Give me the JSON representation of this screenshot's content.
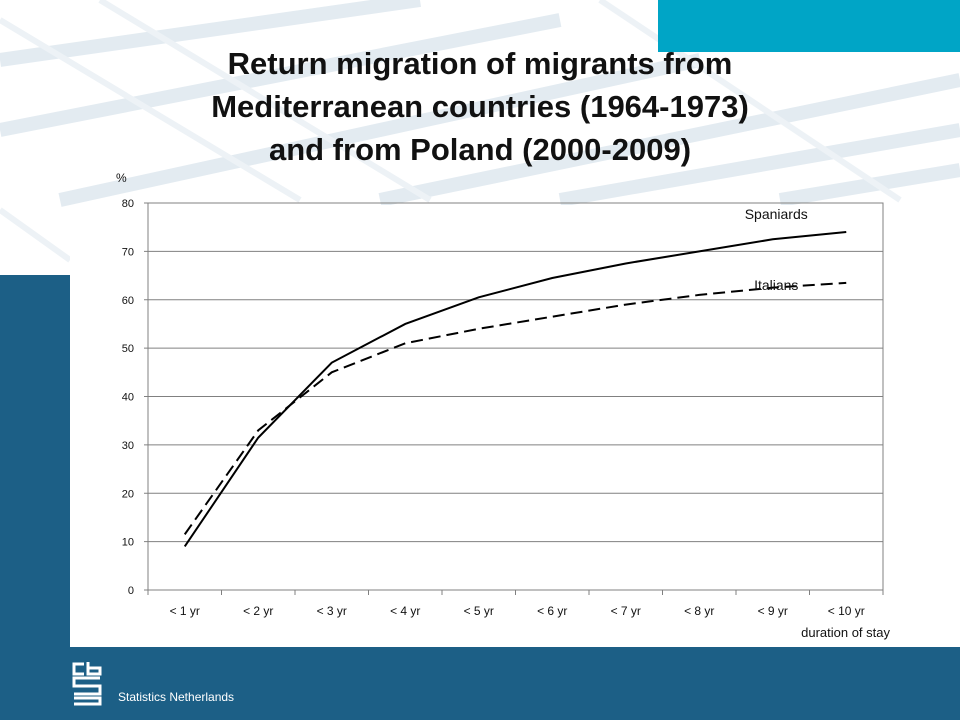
{
  "slide": {
    "title_lines": [
      "Return migration of migrants from",
      "Mediterranean countries (1964-1973)",
      "and from Poland (2000-2009)"
    ],
    "footer": "Statistics Netherlands",
    "colors": {
      "band": "#1c5f86",
      "accent": "#00a5c6"
    },
    "logo_icon": "cbs-logo-icon"
  },
  "chart_data": {
    "type": "line",
    "title": "",
    "ylabel": "%",
    "xlabel": "duration of stay",
    "ylim": [
      0,
      80
    ],
    "yticks": [
      0,
      10,
      20,
      30,
      40,
      50,
      60,
      70,
      80
    ],
    "categories": [
      "< 1 yr",
      "< 2 yr",
      "< 3 yr",
      "< 4 yr",
      "< 5 yr",
      "< 6 yr",
      "< 7 yr",
      "< 8 yr",
      "< 9 yr",
      "< 10 yr"
    ],
    "grid": true,
    "series": [
      {
        "name": "Spaniards",
        "style": "solid",
        "values": [
          9,
          31.5,
          47,
          55,
          60.5,
          64.5,
          67.5,
          70,
          72.5,
          74
        ]
      },
      {
        "name": "Italians",
        "style": "dashed",
        "values": [
          11.5,
          33,
          45,
          51,
          54,
          56.5,
          59,
          61,
          62.5,
          63.5
        ]
      }
    ]
  }
}
